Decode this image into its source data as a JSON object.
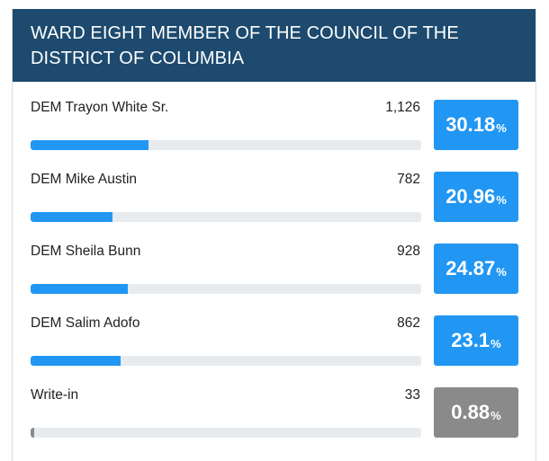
{
  "header": {
    "title": "WARD EIGHT MEMBER OF THE COUNCIL OF THE DISTRICT OF COLUMBIA"
  },
  "candidates": [
    {
      "name": "DEM Trayon White Sr.",
      "votes": "1,126",
      "pct": "30.18",
      "unit": "%",
      "share": 30.18,
      "status": "blue"
    },
    {
      "name": "DEM Mike Austin",
      "votes": "782",
      "pct": "20.96",
      "unit": "%",
      "share": 20.96,
      "status": "blue"
    },
    {
      "name": "DEM Sheila Bunn",
      "votes": "928",
      "pct": "24.87",
      "unit": "%",
      "share": 24.87,
      "status": "blue"
    },
    {
      "name": "DEM Salim Adofo",
      "votes": "862",
      "pct": "23.1",
      "unit": "%",
      "share": 23.1,
      "status": "blue"
    },
    {
      "name": "Write-in",
      "votes": "33",
      "pct": "0.88",
      "unit": "%",
      "share": 0.88,
      "status": "gray"
    }
  ],
  "colors": {
    "header_bg": "#1d4a6e",
    "accent": "#2196f3",
    "muted": "#8a8a8a",
    "track": "#e8ebee"
  }
}
